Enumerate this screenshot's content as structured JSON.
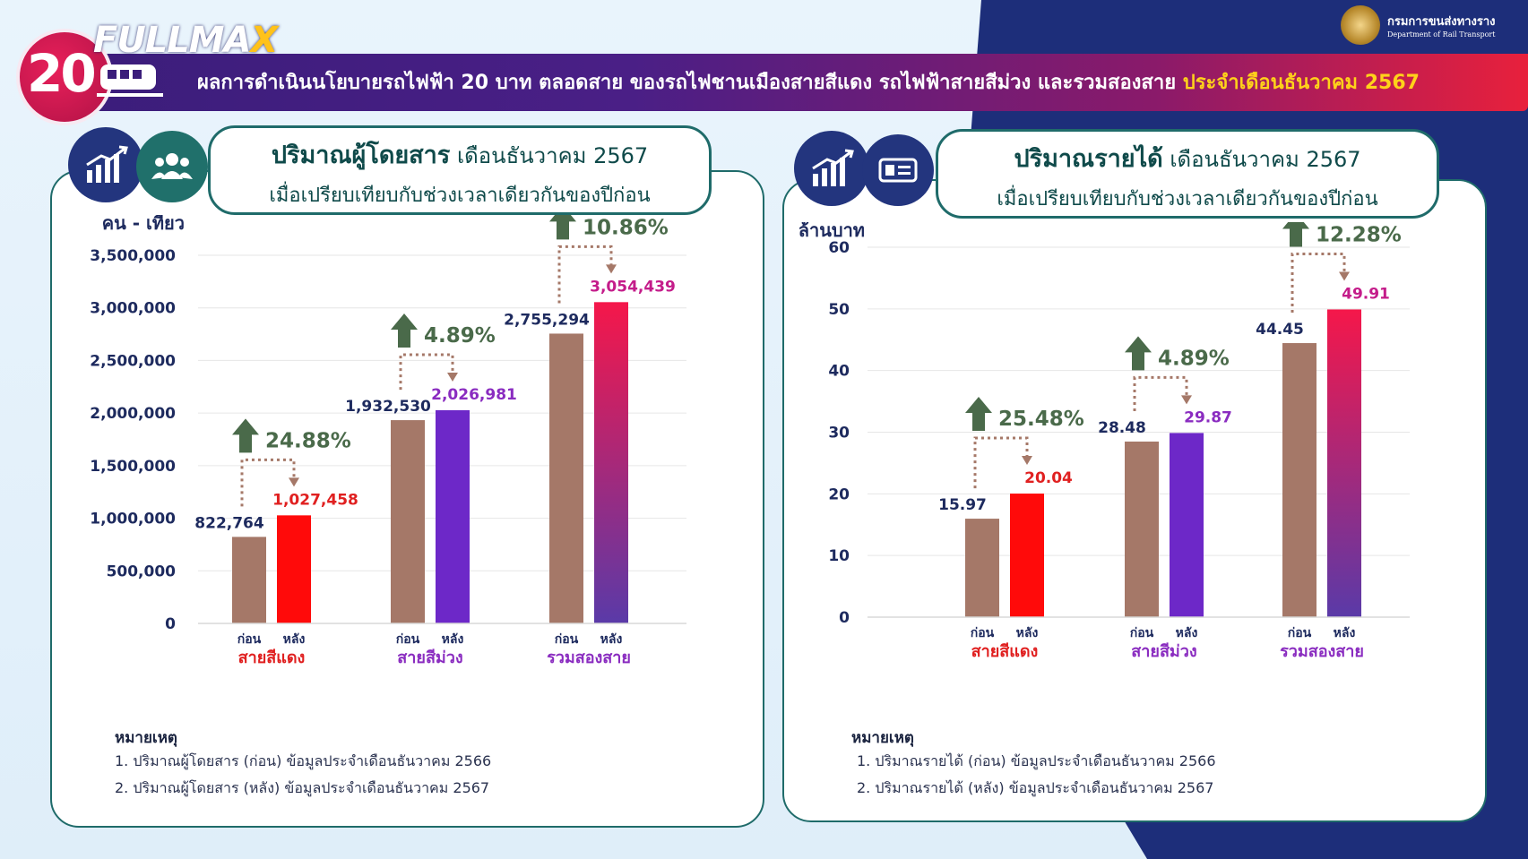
{
  "header": {
    "logo_number": "20",
    "brand_prefix": "FULLMA",
    "brand_suffix": "X",
    "title_main": "ผลการดำเนินนโยบายรถไฟฟ้า 20 บาท ตลอดสาย ของรถไฟชานเมืองสายสีแดง รถไฟฟ้าสายสีม่วง และรวมสองสาย",
    "title_highlight": "ประจำเดือนธันวาคม 2567",
    "dept_th": "กรมการขนส่งทางราง",
    "dept_en": "Department of Rail Transport"
  },
  "colors": {
    "before": "#a57868",
    "red": "#ff0a0a",
    "purple": "#6d28c8",
    "total_top": "#f5174a",
    "total_bottom": "#5a3aa8",
    "arrow_green": "#4a6a4a",
    "pct_green": "#4a6a4a",
    "navy": "#1d2a5e",
    "red_label": "#e02020",
    "purple_label": "#8a2cc0",
    "magenta_label": "#c41c8a"
  },
  "chart_data": [
    {
      "type": "bar",
      "title_bold": "ปริมาณผู้โดยสาร",
      "title_rest": "เดือนธันวาคม 2567",
      "subtitle": "เมื่อเปรียบเทียบกับช่วงเวลาเดียวกันของปีก่อน",
      "ylabel": "คน - เที่ยว",
      "ylim": [
        0,
        3500000
      ],
      "yticks": [
        "0",
        "500,000",
        "1,000,000",
        "1,500,000",
        "2,000,000",
        "2,500,000",
        "3,000,000",
        "3,500,000"
      ],
      "grid": true,
      "bar_labels": [
        "ก่อน",
        "หลัง"
      ],
      "categories": [
        "สายสีแดง",
        "สายสีม่วง",
        "รวมสองสาย"
      ],
      "series": [
        {
          "name": "ก่อน",
          "values": [
            822764,
            1932530,
            2755294
          ],
          "labels": [
            "822,764",
            "1,932,530",
            "2,755,294"
          ]
        },
        {
          "name": "หลัง",
          "values": [
            1027458,
            2026981,
            3054439
          ],
          "labels": [
            "1,027,458",
            "2,026,981",
            "3,054,439"
          ]
        }
      ],
      "changes": [
        "24.88%",
        "4.89%",
        "10.86%"
      ],
      "notes_title": "หมายเหตุ",
      "notes": [
        "1. ปริมาณผู้โดยสาร (ก่อน) ข้อมูลประจำเดือนธันวาคม 2566",
        "2. ปริมาณผู้โดยสาร (หลัง) ข้อมูลประจำเดือนธันวาคม 2567"
      ]
    },
    {
      "type": "bar",
      "title_bold": "ปริมาณรายได้",
      "title_rest": "เดือนธันวาคม 2567",
      "subtitle": "เมื่อเปรียบเทียบกับช่วงเวลาเดียวกันของปีก่อน",
      "ylabel": "ล้านบาท",
      "ylim": [
        0,
        60
      ],
      "yticks": [
        "0",
        "10",
        "20",
        "30",
        "40",
        "50",
        "60"
      ],
      "grid": true,
      "bar_labels": [
        "ก่อน",
        "หลัง"
      ],
      "categories": [
        "สายสีแดง",
        "สายสีม่วง",
        "รวมสองสาย"
      ],
      "series": [
        {
          "name": "ก่อน",
          "values": [
            15.97,
            28.48,
            44.45
          ],
          "labels": [
            "15.97",
            "28.48",
            "44.45"
          ]
        },
        {
          "name": "หลัง",
          "values": [
            20.04,
            29.87,
            49.91
          ],
          "labels": [
            "20.04",
            "29.87",
            "49.91"
          ]
        }
      ],
      "changes": [
        "25.48%",
        "4.89%",
        "12.28%"
      ],
      "notes_title": "หมายเหตุ",
      "notes": [
        "1. ปริมาณรายได้ (ก่อน) ข้อมูลประจำเดือนธันวาคม 2566",
        "2. ปริมาณรายได้ (หลัง) ข้อมูลประจำเดือนธันวาคม 2567"
      ]
    }
  ]
}
